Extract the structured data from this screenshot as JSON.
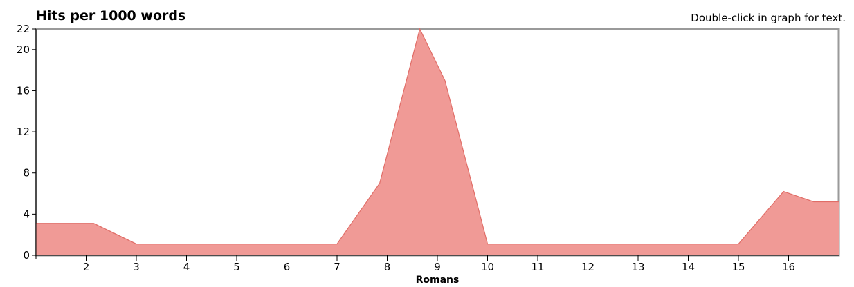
{
  "chart_data": {
    "type": "area",
    "title": "Hits per 1000 words",
    "hint": "Double-click in graph for text.",
    "xlabel": "Romans",
    "ylabel": "",
    "ylim": [
      0,
      22
    ],
    "yticks": [
      0,
      4,
      8,
      12,
      16,
      20,
      22
    ],
    "xlim": [
      1,
      17
    ],
    "xticks": [
      2,
      3,
      4,
      5,
      6,
      7,
      8,
      9,
      10,
      11,
      12,
      13,
      14,
      15,
      16
    ],
    "x": [
      1,
      2.15,
      3,
      4,
      5,
      6,
      7,
      7.85,
      8.65,
      9.15,
      10,
      11,
      12,
      13,
      14,
      15,
      15.9,
      16.5,
      17
    ],
    "values": [
      3.1,
      3.1,
      1.1,
      1.1,
      1.1,
      1.1,
      1.1,
      7.0,
      22.0,
      17.0,
      1.1,
      1.1,
      1.1,
      1.1,
      1.1,
      1.1,
      6.2,
      5.2,
      5.2
    ],
    "fill_color": "#f09a96",
    "line_color": "#e06d67",
    "grid": false
  }
}
